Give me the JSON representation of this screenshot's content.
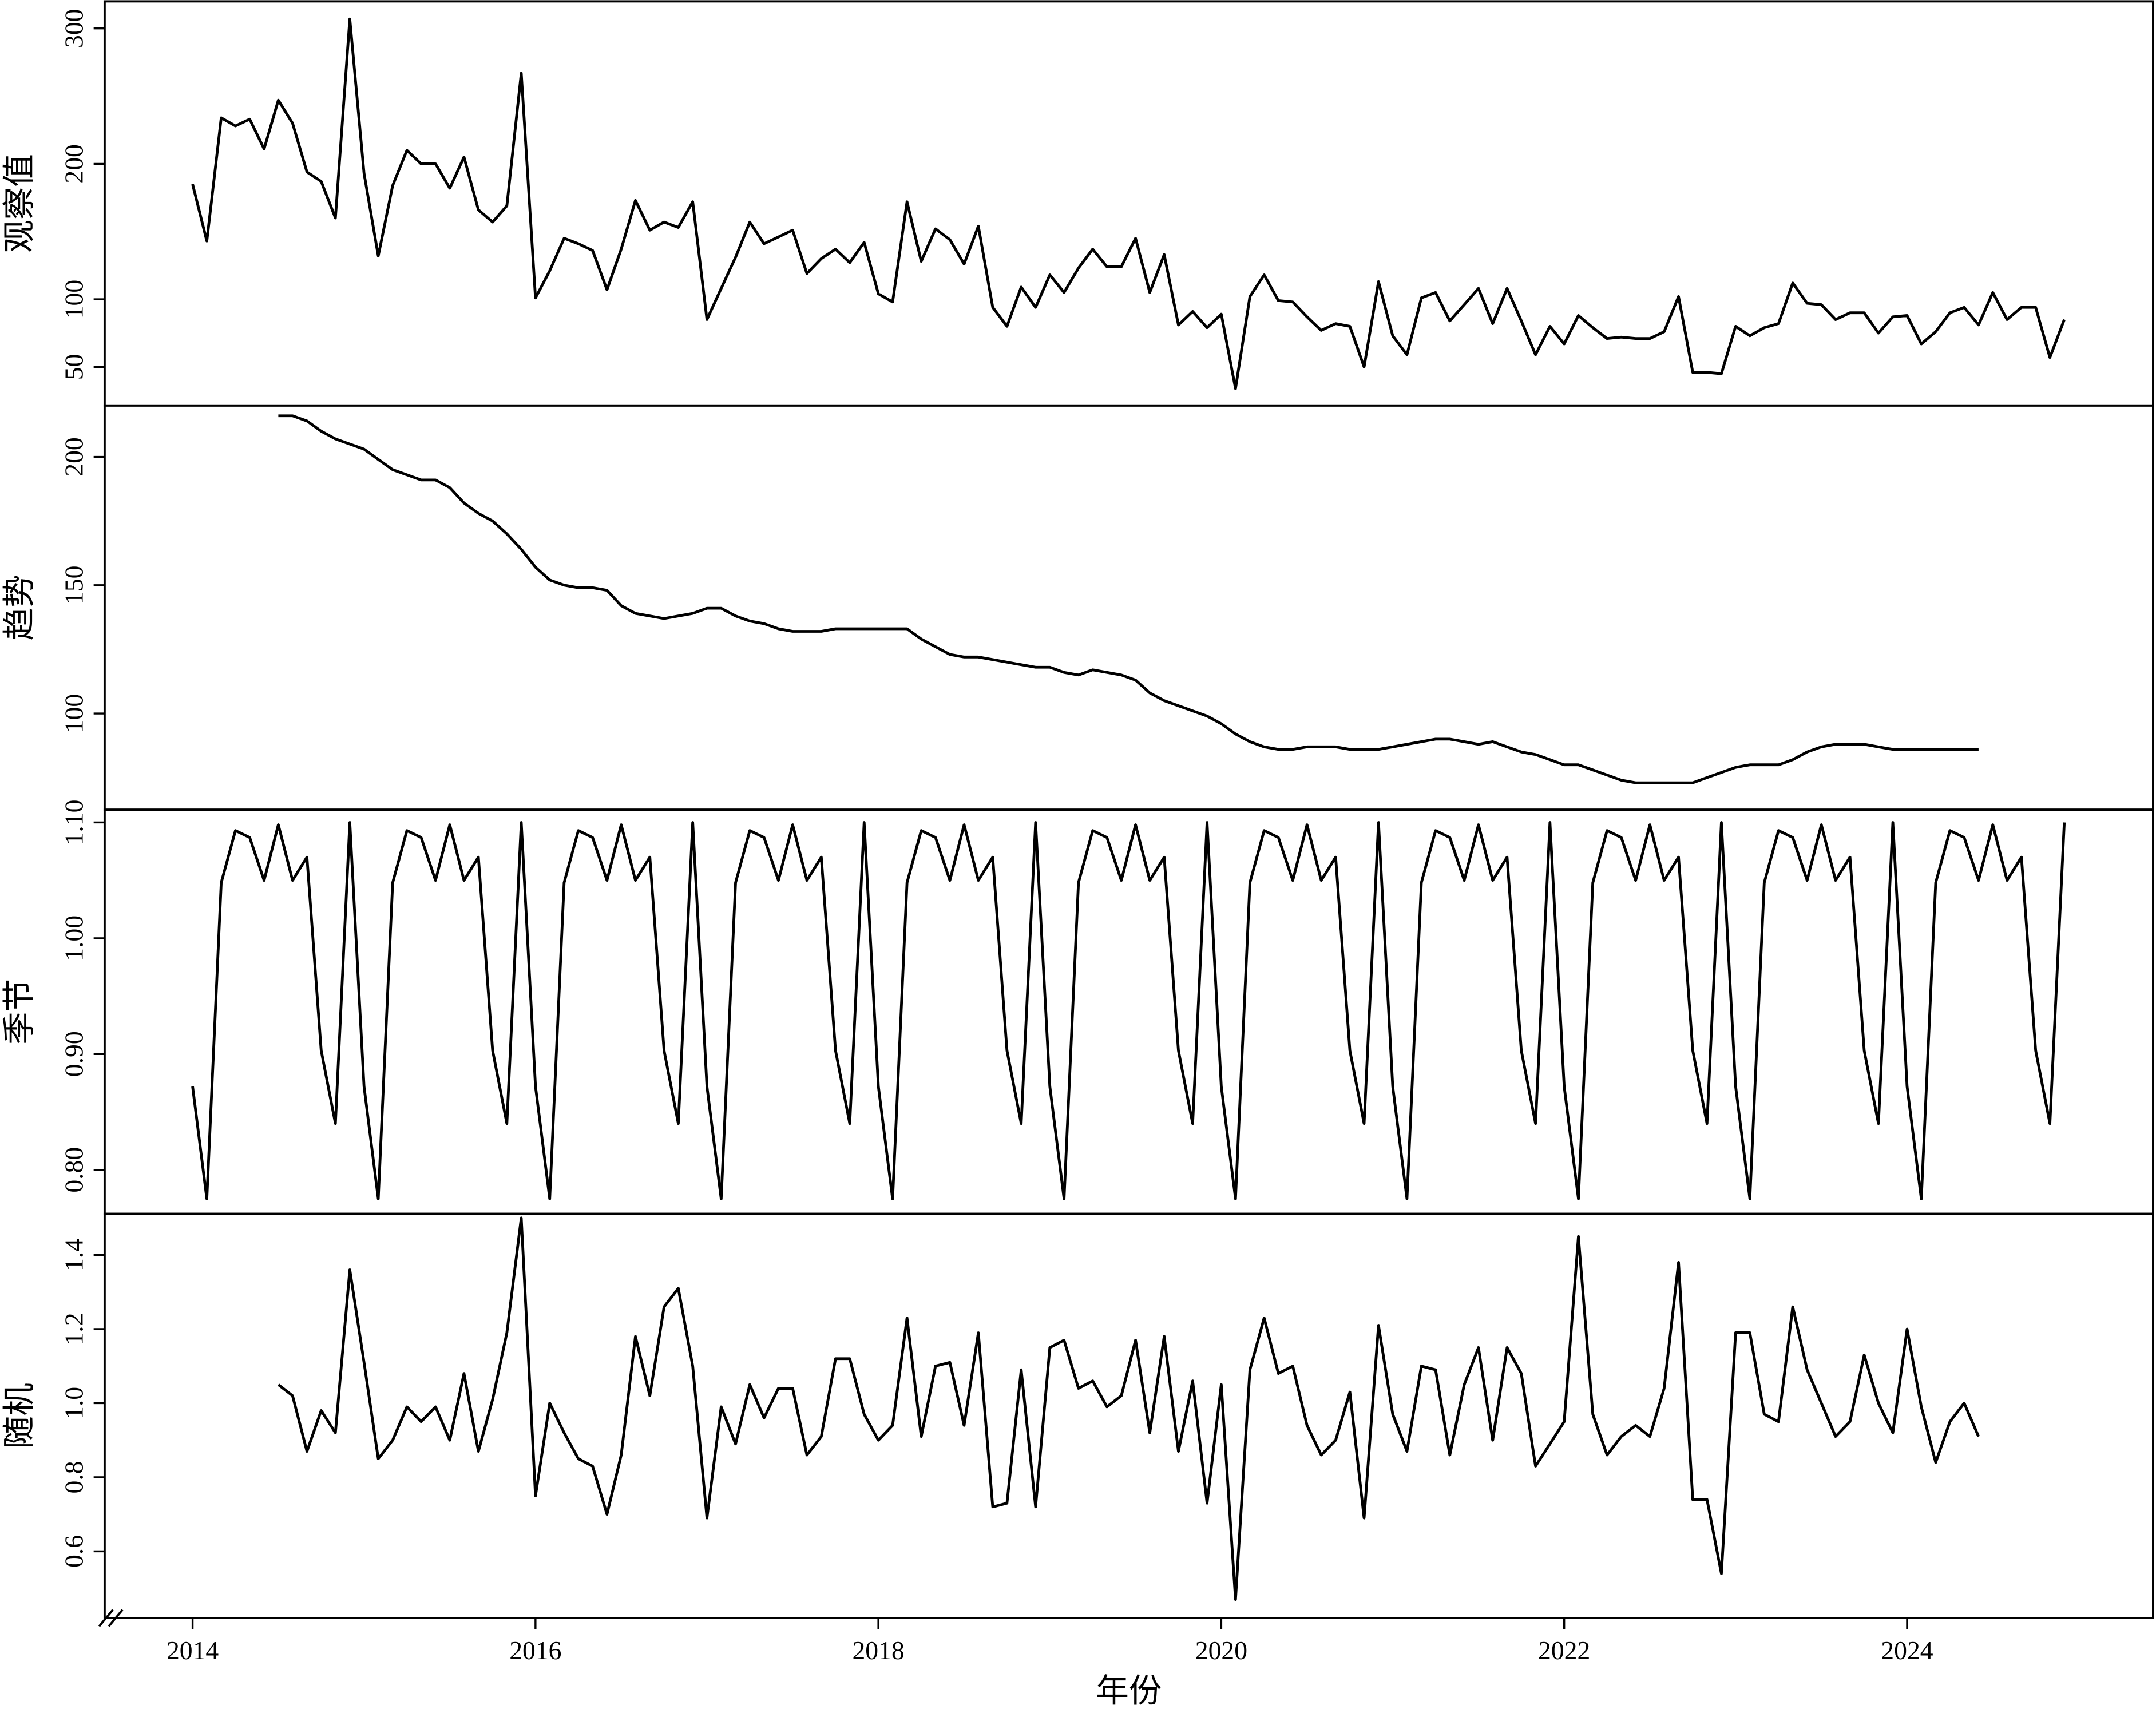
{
  "chart_data": [
    {
      "type": "line",
      "ylabel": "观察值",
      "color": "#000000",
      "ylim": [
        21.5,
        320
      ],
      "yticks": [
        50,
        100,
        200,
        300
      ],
      "values": [
        185,
        143,
        234,
        228,
        233,
        211,
        247,
        230,
        194,
        187,
        160,
        307,
        193,
        132,
        184,
        210,
        200,
        200,
        182,
        205,
        166,
        157,
        169,
        267,
        101,
        121,
        145,
        141,
        136,
        107,
        137,
        173,
        151,
        157,
        153,
        172,
        85,
        108,
        131,
        157,
        141,
        146,
        151,
        119,
        130,
        137,
        127,
        142,
        104,
        98,
        172,
        128,
        152,
        144,
        126,
        154,
        94,
        80,
        109,
        94,
        118,
        105,
        123,
        137,
        124,
        124,
        145,
        105,
        133,
        81,
        91,
        79,
        89,
        34,
        102,
        118,
        99,
        98,
        87,
        77,
        82,
        80,
        50,
        113,
        73,
        59,
        101,
        105,
        84,
        96,
        108,
        82,
        108,
        84,
        59,
        80,
        67,
        88,
        79,
        71,
        72,
        71,
        71,
        76,
        102,
        46,
        46,
        45,
        80,
        73,
        79,
        82,
        112,
        97,
        96,
        85,
        90,
        90,
        75,
        87,
        88,
        67,
        76,
        90,
        94,
        81,
        105,
        85,
        94,
        94,
        57,
        85
      ]
    },
    {
      "type": "line",
      "ylabel": "趋势",
      "color": "#000000",
      "ylim": [
        62.5,
        220
      ],
      "yticks": [
        100,
        150,
        200
      ],
      "values": [
        null,
        null,
        null,
        null,
        null,
        null,
        216,
        216,
        214,
        210,
        207,
        205,
        203,
        199,
        195,
        193,
        191,
        191,
        188,
        182,
        178,
        175,
        170,
        164,
        157,
        152,
        150,
        149,
        149,
        148,
        142,
        139,
        138,
        137,
        138,
        139,
        141,
        141,
        138,
        136,
        135,
        133,
        132,
        132,
        132,
        133,
        133,
        133,
        133,
        133,
        133,
        129,
        126,
        123,
        122,
        122,
        121,
        120,
        119,
        118,
        118,
        116,
        115,
        117,
        116,
        115,
        113,
        108,
        105,
        103,
        101,
        99,
        96,
        92,
        89,
        87,
        86,
        86,
        87,
        87,
        87,
        86,
        86,
        86,
        87,
        88,
        89,
        90,
        90,
        89,
        88,
        89,
        87,
        85,
        84,
        82,
        80,
        80,
        78,
        76,
        74,
        73,
        73,
        73,
        73,
        73,
        75,
        77,
        79,
        80,
        80,
        80,
        82,
        85,
        87,
        88,
        88,
        88,
        87,
        86,
        86,
        86,
        86,
        86,
        86,
        86,
        null,
        null,
        null,
        null,
        null,
        null
      ]
    },
    {
      "type": "line",
      "ylabel": "季节",
      "color": "#000000",
      "ylim": [
        0.762,
        1.111
      ],
      "yticks": [
        {
          "value": 0.8,
          "label": "0.80"
        },
        {
          "value": 0.9,
          "label": "0.90"
        },
        {
          "value": 1.0,
          "label": "1.00"
        },
        {
          "value": 1.1,
          "label": "1.10"
        }
      ],
      "values": [
        0.872,
        0.775,
        1.048,
        1.093,
        1.087,
        1.05,
        1.098,
        1.05,
        1.07,
        0.903,
        0.84,
        1.1,
        0.872,
        0.775,
        1.048,
        1.093,
        1.087,
        1.05,
        1.098,
        1.05,
        1.07,
        0.903,
        0.84,
        1.1,
        0.872,
        0.775,
        1.048,
        1.093,
        1.087,
        1.05,
        1.098,
        1.05,
        1.07,
        0.903,
        0.84,
        1.1,
        0.872,
        0.775,
        1.048,
        1.093,
        1.087,
        1.05,
        1.098,
        1.05,
        1.07,
        0.903,
        0.84,
        1.1,
        0.872,
        0.775,
        1.048,
        1.093,
        1.087,
        1.05,
        1.098,
        1.05,
        1.07,
        0.903,
        0.84,
        1.1,
        0.872,
        0.775,
        1.048,
        1.093,
        1.087,
        1.05,
        1.098,
        1.05,
        1.07,
        0.903,
        0.84,
        1.1,
        0.872,
        0.775,
        1.048,
        1.093,
        1.087,
        1.05,
        1.098,
        1.05,
        1.07,
        0.903,
        0.84,
        1.1,
        0.872,
        0.775,
        1.048,
        1.093,
        1.087,
        1.05,
        1.098,
        1.05,
        1.07,
        0.903,
        0.84,
        1.1,
        0.872,
        0.775,
        1.048,
        1.093,
        1.087,
        1.05,
        1.098,
        1.05,
        1.07,
        0.903,
        0.84,
        1.1,
        0.872,
        0.775,
        1.048,
        1.093,
        1.087,
        1.05,
        1.098,
        1.05,
        1.07,
        0.903,
        0.84,
        1.1,
        0.872,
        0.775,
        1.048,
        1.093,
        1.087,
        1.05,
        1.098,
        1.05,
        1.07,
        0.903,
        0.84,
        1.1
      ]
    },
    {
      "type": "line",
      "ylabel": "随机",
      "color": "#000000",
      "ylim": [
        0.42,
        1.511
      ],
      "yticks": [
        0.6,
        0.8,
        {
          "value": 1.0,
          "label": "1.0"
        },
        1.2,
        1.4
      ],
      "xlabel": "年份",
      "xlim": [
        2013.487,
        2025.435
      ],
      "xticks": [
        2014,
        2016,
        2018,
        2020,
        2022,
        2024
      ],
      "x": [
        2014,
        2014.083,
        2014.167,
        2014.25,
        2014.333,
        2014.417,
        2014.5,
        2014.583,
        2014.667,
        2014.75,
        2014.833,
        2014.917,
        2015,
        2015.083,
        2015.167,
        2015.25,
        2015.333,
        2015.417,
        2015.5,
        2015.583,
        2015.667,
        2015.75,
        2015.833,
        2015.917,
        2016,
        2016.083,
        2016.167,
        2016.25,
        2016.333,
        2016.417,
        2016.5,
        2016.583,
        2016.667,
        2016.75,
        2016.833,
        2016.917,
        2017,
        2017.083,
        2017.167,
        2017.25,
        2017.333,
        2017.417,
        2017.5,
        2017.583,
        2017.667,
        2017.75,
        2017.833,
        2017.917,
        2018,
        2018.083,
        2018.167,
        2018.25,
        2018.333,
        2018.417,
        2018.5,
        2018.583,
        2018.667,
        2018.75,
        2018.833,
        2018.917,
        2019,
        2019.083,
        2019.167,
        2019.25,
        2019.333,
        2019.417,
        2019.5,
        2019.583,
        2019.667,
        2019.75,
        2019.833,
        2019.917,
        2020,
        2020.083,
        2020.167,
        2020.25,
        2020.333,
        2020.417,
        2020.5,
        2020.583,
        2020.667,
        2020.75,
        2020.833,
        2020.917,
        2021,
        2021.083,
        2021.167,
        2021.25,
        2021.333,
        2021.417,
        2021.5,
        2021.583,
        2021.667,
        2021.75,
        2021.833,
        2021.917,
        2022,
        2022.083,
        2022.167,
        2022.25,
        2022.333,
        2022.417,
        2022.5,
        2022.583,
        2022.667,
        2022.75,
        2022.833,
        2022.917,
        2023,
        2023.083,
        2023.167,
        2023.25,
        2023.333,
        2023.417,
        2023.5,
        2023.583,
        2023.667,
        2023.75,
        2023.833,
        2023.917,
        2024,
        2024.083,
        2024.167,
        2024.25,
        2024.333,
        2024.417,
        2024.5,
        2024.583,
        2024.667,
        2024.75,
        2024.833,
        2024.917
      ],
      "values": [
        null,
        null,
        null,
        null,
        null,
        null,
        1.05,
        1.02,
        0.87,
        0.98,
        0.92,
        1.36,
        1.11,
        0.85,
        0.9,
        0.99,
        0.95,
        0.99,
        0.9,
        1.08,
        0.87,
        1.01,
        1.19,
        1.5,
        0.75,
        1.0,
        0.92,
        0.85,
        0.83,
        0.7,
        0.86,
        1.18,
        1.02,
        1.26,
        1.31,
        1.1,
        0.69,
        0.99,
        0.89,
        1.05,
        0.96,
        1.04,
        1.04,
        0.86,
        0.91,
        1.12,
        1.12,
        0.97,
        0.9,
        0.94,
        1.23,
        0.91,
        1.1,
        1.11,
        0.94,
        1.19,
        0.72,
        0.73,
        1.09,
        0.72,
        1.15,
        1.17,
        1.04,
        1.06,
        0.99,
        1.02,
        1.17,
        0.92,
        1.18,
        0.87,
        1.06,
        0.73,
        1.05,
        0.47,
        1.09,
        1.23,
        1.08,
        1.1,
        0.94,
        0.86,
        0.9,
        1.03,
        0.69,
        1.21,
        0.97,
        0.87,
        1.1,
        1.09,
        0.86,
        1.05,
        1.15,
        0.9,
        1.15,
        1.08,
        0.83,
        0.89,
        0.95,
        1.45,
        0.97,
        0.86,
        0.91,
        0.94,
        0.91,
        1.04,
        1.38,
        0.74,
        0.74,
        0.54,
        1.19,
        1.19,
        0.97,
        0.95,
        1.26,
        1.09,
        1.0,
        0.91,
        0.95,
        1.13,
        1.0,
        0.92,
        1.2,
        0.99,
        0.84,
        0.95,
        1.0,
        0.91,
        null,
        null,
        null,
        null,
        null,
        null
      ]
    }
  ]
}
